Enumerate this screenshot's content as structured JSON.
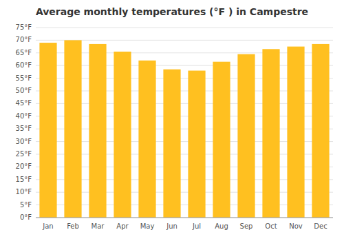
{
  "chart_data": {
    "type": "bar",
    "title": "Average monthly temperatures (°F ) in Campestre",
    "categories": [
      "Jan",
      "Feb",
      "Mar",
      "Apr",
      "May",
      "Jun",
      "Jul",
      "Aug",
      "Sep",
      "Oct",
      "Nov",
      "Dec"
    ],
    "values": [
      69,
      70,
      68.5,
      65.5,
      62,
      58.5,
      58,
      61.5,
      64.5,
      66.5,
      67.5,
      68.5
    ],
    "color": "#FFC020",
    "ylim": [
      0,
      75
    ],
    "yticks": [
      {
        "value": 0,
        "label": "0°F"
      },
      {
        "value": 5,
        "label": "5°F"
      },
      {
        "value": 10,
        "label": "10°F"
      },
      {
        "value": 15,
        "label": "15°F"
      },
      {
        "value": 20,
        "label": "20°F"
      },
      {
        "value": 25,
        "label": "25°F"
      },
      {
        "value": 30,
        "label": "30°F"
      },
      {
        "value": 35,
        "label": "35°F"
      },
      {
        "value": 40,
        "label": "40°F"
      },
      {
        "value": 45,
        "label": "45°F"
      },
      {
        "value": 50,
        "label": "50°F"
      },
      {
        "value": 55,
        "label": "55°F"
      },
      {
        "value": 60,
        "label": "60°F"
      },
      {
        "value": 65,
        "label": "65°F"
      },
      {
        "value": 70,
        "label": "70°F"
      },
      {
        "value": 75,
        "label": "75°F"
      }
    ],
    "grid": true
  }
}
